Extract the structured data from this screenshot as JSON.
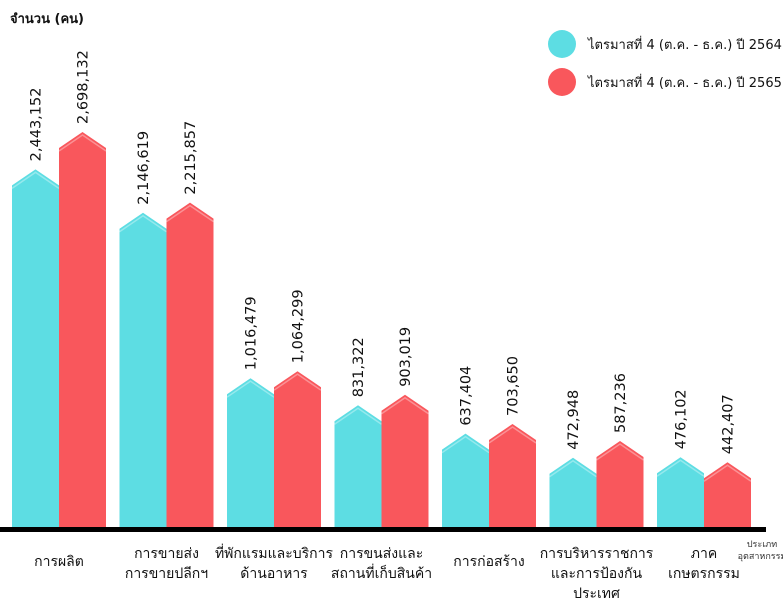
{
  "chart_data": {
    "type": "bar",
    "ylabel": "จำนวน (คน)",
    "categories": [
      [
        "การผลิต"
      ],
      [
        "การขายส่ง",
        "การขายปลีกฯ"
      ],
      [
        "ที่พักแรมและบริการ",
        "ด้านอาหาร"
      ],
      [
        "การขนส่งและ",
        "สถานที่เก็บสินค้า"
      ],
      [
        "การก่อสร้าง"
      ],
      [
        "การบริหารราชการ",
        "และการป้องกัน",
        "ประเทศ"
      ],
      [
        "ภาค",
        "เกษตรกรรม"
      ]
    ],
    "series": [
      {
        "name": "ไตรมาสที่ 4 (ต.ค. - ธ.ค.) ปี 2564",
        "color": "#5ddde3",
        "values": [
          2443152,
          2146619,
          1016479,
          831322,
          637404,
          472948,
          476102
        ],
        "labels": [
          "2,443,152",
          "2,146,619",
          "1,016,479",
          "831,322",
          "637,404",
          "472,948",
          "476,102"
        ]
      },
      {
        "name": "ไตรมาสที่ 4 (ต.ค. - ธ.ค.) ปี 2565",
        "color": "#f9575c",
        "values": [
          2698132,
          2215857,
          1064299,
          903019,
          703650,
          587236,
          442407
        ],
        "labels": [
          "2,698,132",
          "2,215,857",
          "1,064,299",
          "903,019",
          "703,650",
          "587,236",
          "442,407"
        ]
      }
    ],
    "note": [
      "ประเภท",
      "อุตสาหกรรม"
    ],
    "legend_position": "top-right",
    "grid": false
  }
}
